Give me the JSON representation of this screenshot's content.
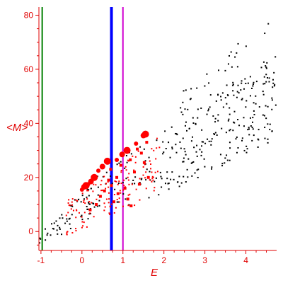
{
  "chart_data": {
    "type": "scatter",
    "title": "",
    "xlabel": "E",
    "ylabel": "<M>",
    "xlim": [
      -1.05,
      4.75
    ],
    "ylim": [
      -7,
      83
    ],
    "xticks": [
      -1,
      0,
      1,
      2,
      3,
      4
    ],
    "yticks": [
      0,
      20,
      40,
      60,
      80
    ],
    "grid": false,
    "legend": "none",
    "colors": {
      "axes": "#e00000",
      "black_points": "#000000",
      "red_points": "#ff0000",
      "line_green": "#008000",
      "line_blue": "#0000ff",
      "line_magenta": "#d000d0"
    },
    "vertical_lines": [
      {
        "x": -0.97,
        "color": "#008000"
      },
      {
        "x": 0.72,
        "color": "#0000ff"
      },
      {
        "x": 1.0,
        "color": "#d000d0"
      }
    ],
    "large_red_points": [
      [
        0.0,
        15.5
      ],
      [
        0.05,
        16.5
      ],
      [
        0.1,
        17.0
      ],
      [
        0.15,
        17.5
      ],
      [
        0.22,
        18.5
      ],
      [
        0.3,
        20.0
      ],
      [
        0.4,
        22.5
      ],
      [
        0.5,
        24.0
      ],
      [
        0.62,
        26.0
      ],
      [
        0.85,
        26.5
      ],
      [
        0.98,
        28.5
      ],
      [
        1.1,
        30.0
      ],
      [
        1.32,
        32.5
      ],
      [
        1.5,
        35.5
      ],
      [
        1.55,
        36.0
      ]
    ],
    "medium_red_points": [
      [
        0.2,
        8.0
      ],
      [
        0.35,
        10.0
      ],
      [
        0.45,
        13.0
      ],
      [
        0.55,
        15.0
      ],
      [
        0.65,
        19.0
      ],
      [
        0.7,
        23.0
      ],
      [
        0.72,
        17.0
      ],
      [
        0.78,
        11.0
      ],
      [
        0.85,
        20.0
      ],
      [
        0.88,
        14.0
      ],
      [
        0.95,
        24.5
      ],
      [
        1.05,
        16.0
      ],
      [
        1.12,
        12.0
      ],
      [
        1.18,
        26.5
      ],
      [
        1.28,
        22.0
      ],
      [
        1.35,
        30.5
      ],
      [
        1.45,
        29.0
      ],
      [
        1.52,
        25.5
      ],
      [
        1.58,
        33.0
      ],
      [
        1.62,
        20.0
      ],
      [
        1.2,
        9.5
      ],
      [
        1.4,
        17.5
      ]
    ],
    "red_cloud_region": {
      "x_range": [
        -0.4,
        1.9
      ],
      "y_lo": [
        -2,
        14
      ],
      "y_hi": [
        12,
        36
      ],
      "count": 140
    },
    "black_points": {
      "regions": [
        {
          "x_range": [
            -1.05,
            0.75
          ],
          "y_lo": [
            -6,
            10
          ],
          "y_hi": [
            -1,
            26
          ],
          "count": 75
        },
        {
          "x_range": [
            0.75,
            1.9
          ],
          "y_lo": [
            8,
            13
          ],
          "y_hi": [
            26,
            36
          ],
          "count": 40
        },
        {
          "x_range": [
            1.9,
            4.75
          ],
          "y_lo": [
            13,
            34
          ],
          "y_hi": [
            36,
            66
          ],
          "count": 230
        },
        {
          "x_range": [
            2.4,
            4.75
          ],
          "y_lo": [
            40,
            60
          ],
          "y_hi": [
            52,
            83
          ],
          "count": 40
        }
      ]
    }
  }
}
